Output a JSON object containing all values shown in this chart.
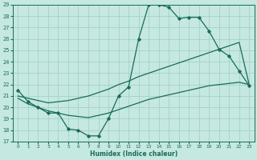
{
  "bg_color": "#c5e8e0",
  "grid_color": "#9ecdc4",
  "line_color": "#1a6b5a",
  "xlabel": "Humidex (Indice chaleur)",
  "xlim": [
    -0.5,
    23.5
  ],
  "ylim": [
    17,
    29
  ],
  "yticks": [
    17,
    18,
    19,
    20,
    21,
    22,
    23,
    24,
    25,
    26,
    27,
    28,
    29
  ],
  "xticks": [
    0,
    1,
    2,
    3,
    4,
    5,
    6,
    7,
    8,
    9,
    10,
    11,
    12,
    13,
    14,
    15,
    16,
    17,
    18,
    19,
    20,
    21,
    22,
    23
  ],
  "curve1_x": [
    0,
    1,
    2,
    3,
    4,
    5,
    6,
    7,
    8,
    9,
    10,
    11,
    12,
    13,
    14,
    15,
    16,
    17,
    18,
    19,
    20,
    21,
    22,
    23
  ],
  "curve1_y": [
    21.5,
    20.5,
    20.0,
    19.5,
    19.5,
    18.1,
    18.0,
    17.5,
    17.5,
    19.0,
    21.0,
    21.8,
    26.0,
    29.0,
    29.0,
    28.8,
    27.8,
    27.9,
    27.9,
    26.7,
    25.1,
    24.5,
    23.2,
    21.9
  ],
  "curve2_x": [
    0,
    1,
    2,
    3,
    4,
    5,
    6,
    7,
    8,
    9,
    10,
    11,
    12,
    13,
    14,
    15,
    16,
    17,
    18,
    19,
    20,
    21,
    22,
    23
  ],
  "curve2_y": [
    21.0,
    20.8,
    20.6,
    20.4,
    20.5,
    20.6,
    20.8,
    21.0,
    21.3,
    21.6,
    22.0,
    22.3,
    22.7,
    23.0,
    23.3,
    23.6,
    23.9,
    24.2,
    24.5,
    24.8,
    25.1,
    25.4,
    25.7,
    22.0
  ],
  "curve3_x": [
    0,
    1,
    2,
    3,
    4,
    5,
    6,
    7,
    8,
    9,
    10,
    11,
    12,
    13,
    14,
    15,
    16,
    17,
    18,
    19,
    20,
    21,
    22,
    23
  ],
  "curve3_y": [
    20.8,
    20.3,
    20.0,
    19.7,
    19.5,
    19.3,
    19.2,
    19.1,
    19.3,
    19.5,
    19.8,
    20.1,
    20.4,
    20.7,
    20.9,
    21.1,
    21.3,
    21.5,
    21.7,
    21.9,
    22.0,
    22.1,
    22.2,
    22.0
  ]
}
